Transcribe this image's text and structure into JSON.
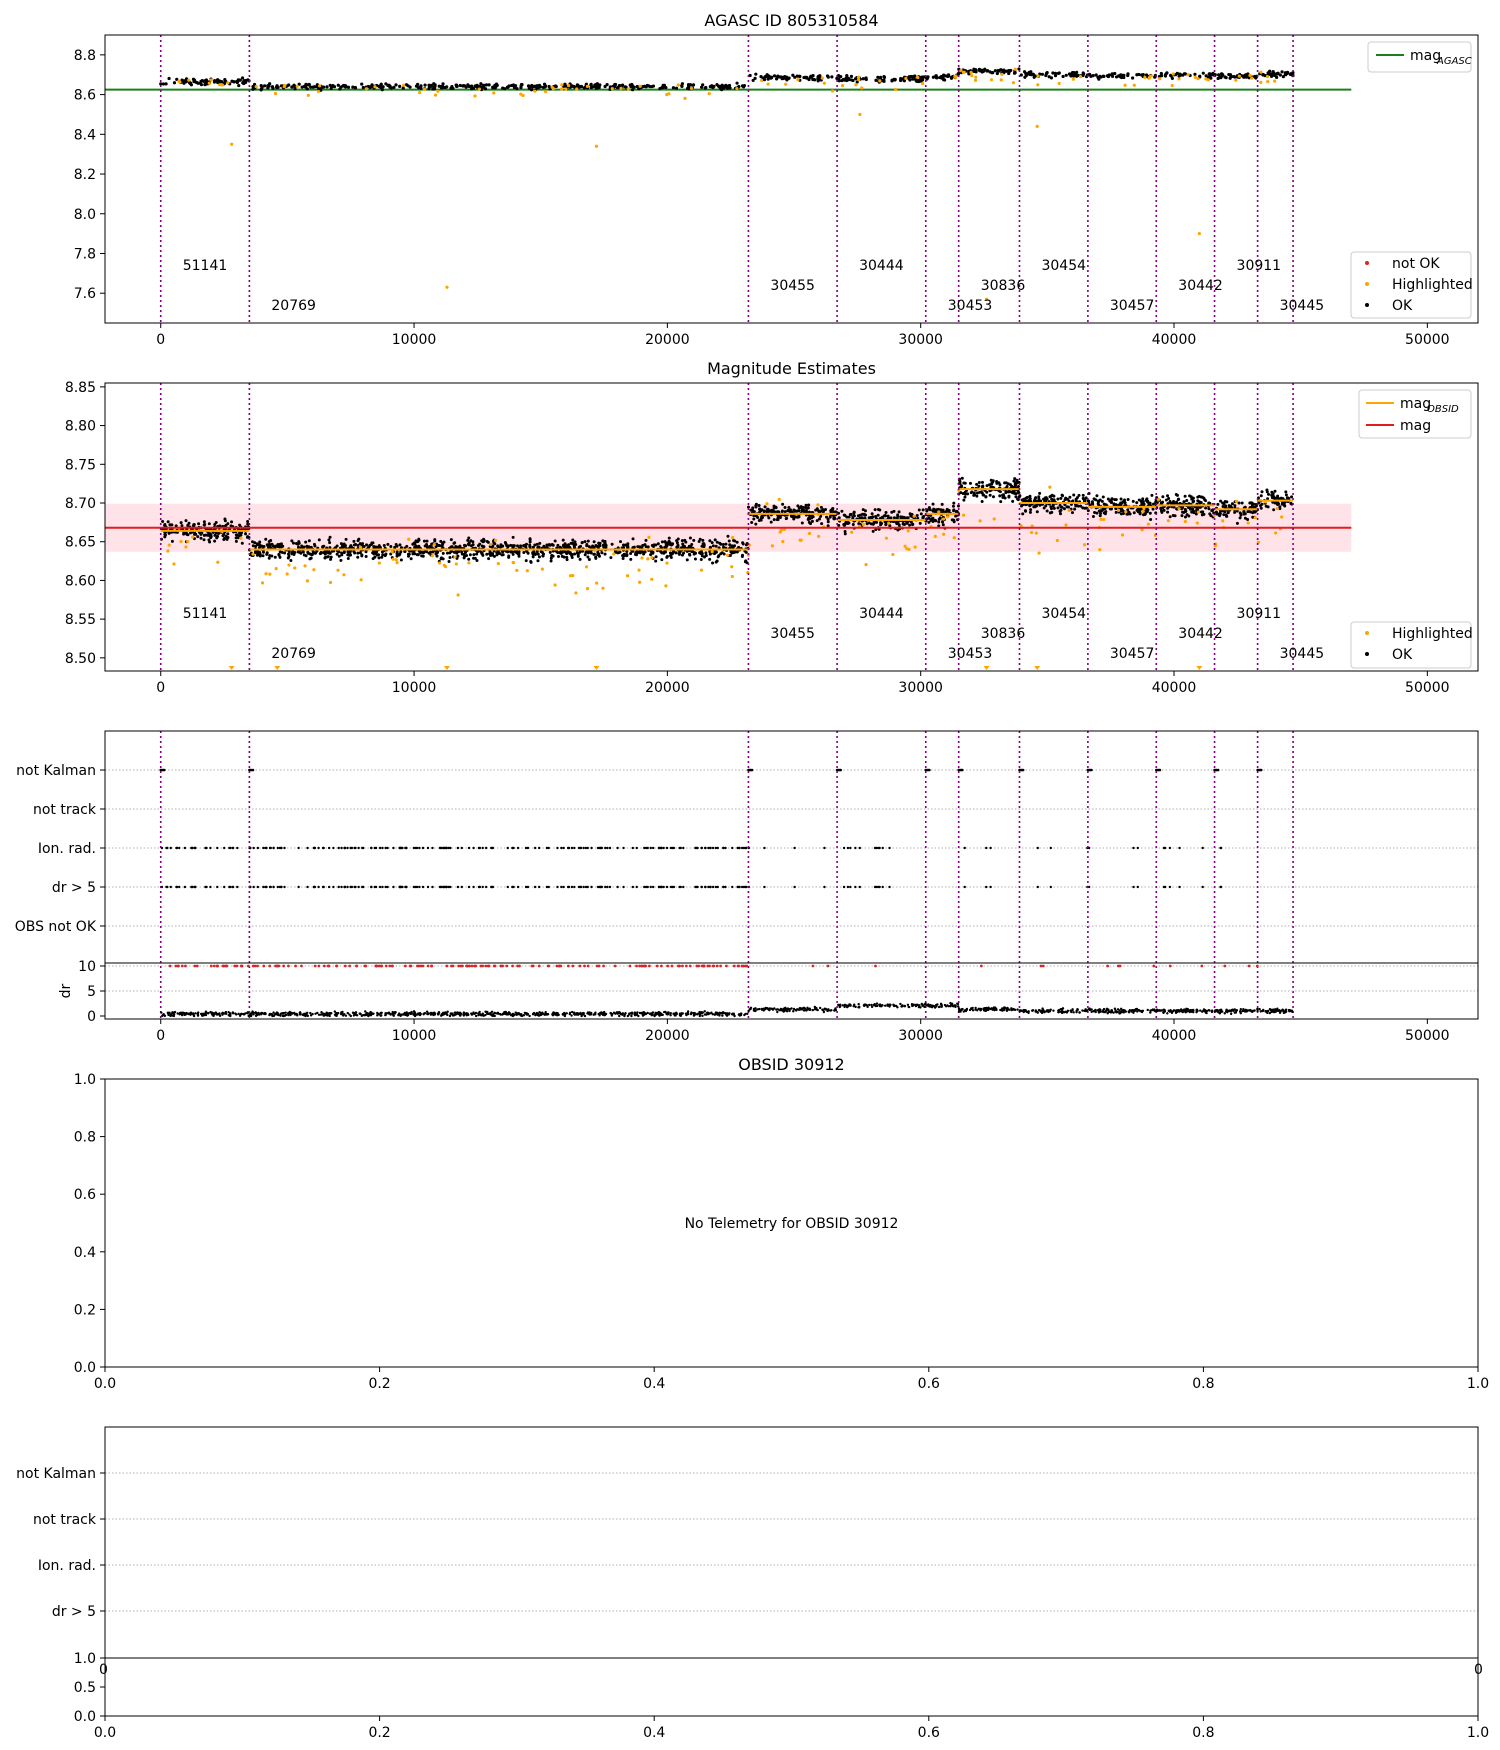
{
  "colors": {
    "ok": "#000000",
    "not_ok": "#d62728",
    "highlighted": "#ffa500",
    "mag_agasc": "#1a7f1a",
    "mag": "#e41a1c",
    "mag_obsid": "#ffa500",
    "obsid_line": "#800080",
    "band": "#ffc0cb",
    "grid": "#b0b0b0"
  },
  "obsids": [
    {
      "id": "51141",
      "start": 0,
      "end": 3500,
      "mean": 8.664
    },
    {
      "id": "20769",
      "start": 3500,
      "end": 23200,
      "mean": 8.64
    },
    {
      "id": "30455",
      "start": 23200,
      "end": 26700,
      "mean": 8.686
    },
    {
      "id": "30444",
      "start": 26700,
      "end": 30200,
      "mean": 8.678
    },
    {
      "id": "30453",
      "start": 30200,
      "end": 31500,
      "mean": 8.686
    },
    {
      "id": "30836",
      "start": 31500,
      "end": 33900,
      "mean": 8.718
    },
    {
      "id": "30454",
      "start": 33900,
      "end": 36600,
      "mean": 8.7
    },
    {
      "id": "30457",
      "start": 36600,
      "end": 39300,
      "mean": 8.695
    },
    {
      "id": "30442",
      "start": 39300,
      "end": 41600,
      "mean": 8.697
    },
    {
      "id": "30911",
      "start": 41600,
      "end": 43300,
      "mean": 8.692
    },
    {
      "id": "30445",
      "start": 43300,
      "end": 44700,
      "mean": 8.703
    }
  ],
  "chart_data": [
    {
      "type": "scatter",
      "title": "AGASC ID 805310584",
      "xlabel": "",
      "ylabel": "",
      "xlim": [
        -2200,
        52000
      ],
      "ylim": [
        7.45,
        8.9
      ],
      "xticks": [
        0,
        10000,
        20000,
        30000,
        40000,
        50000
      ],
      "yticks": [
        7.6,
        7.8,
        8.0,
        8.2,
        8.4,
        8.6,
        8.8
      ],
      "hlines": [
        {
          "name": "mag_AGASC",
          "value": 8.625,
          "x": [
            -2200,
            47000
          ]
        }
      ],
      "highlighted_outliers": [
        {
          "x": 2800,
          "y": 8.35
        },
        {
          "x": 17200,
          "y": 8.34
        },
        {
          "x": 11300,
          "y": 7.63
        },
        {
          "x": 32600,
          "y": 7.57
        },
        {
          "x": 41000,
          "y": 7.9
        },
        {
          "x": 34600,
          "y": 8.44
        },
        {
          "x": 27600,
          "y": 8.5
        }
      ],
      "legends": [
        {
          "placement": "upper right",
          "entries": [
            {
              "label": "mag",
              "sub": "AGASC",
              "marker": "line",
              "color": "mag_agasc"
            }
          ]
        },
        {
          "placement": "lower right",
          "entries": [
            {
              "label": "not OK",
              "marker": "dot",
              "color": "not_ok"
            },
            {
              "label": "Highlighted",
              "marker": "dot",
              "color": "highlighted"
            },
            {
              "label": "OK",
              "marker": "dot",
              "color": "ok"
            }
          ]
        }
      ]
    },
    {
      "type": "scatter",
      "title": "Magnitude Estimates",
      "xlabel": "",
      "ylabel": "",
      "xlim": [
        -2200,
        52000
      ],
      "ylim": [
        8.483,
        8.855
      ],
      "xticks": [
        0,
        10000,
        20000,
        30000,
        40000,
        50000
      ],
      "yticks": [
        8.5,
        8.55,
        8.6,
        8.65,
        8.7,
        8.75,
        8.8,
        8.85
      ],
      "hlines": [
        {
          "name": "mag",
          "value": 8.668,
          "band": [
            8.637,
            8.699
          ],
          "x": [
            -2200,
            47000
          ]
        }
      ],
      "legends": [
        {
          "placement": "upper right",
          "entries": [
            {
              "label": "mag",
              "sub": "OBSID",
              "marker": "line",
              "color": "mag_obsid"
            },
            {
              "label": "mag",
              "marker": "line",
              "color": "mag"
            }
          ]
        },
        {
          "placement": "lower right",
          "entries": [
            {
              "label": "Highlighted",
              "marker": "dot",
              "color": "highlighted"
            },
            {
              "label": "OK",
              "marker": "dot",
              "color": "ok"
            }
          ]
        }
      ]
    },
    {
      "type": "scatter",
      "title": "",
      "xlim": [
        -2200,
        52000
      ],
      "categories": [
        "not Kalman",
        "not track",
        "Ion. rad.",
        "dr > 5",
        "OBS not OK"
      ],
      "dr_yticks": [
        0,
        5,
        10
      ],
      "dr_ylabel": "dr",
      "xticks": [
        0,
        10000,
        20000,
        30000,
        40000,
        50000
      ]
    },
    {
      "type": "scatter",
      "title": "OBSID 30912",
      "message": "No Telemetry for OBSID 30912",
      "xlim": [
        0,
        1
      ],
      "ylim": [
        0,
        1
      ],
      "xticks": [
        "0.0",
        "0.2",
        "0.4",
        "0.6",
        "0.8",
        "1.0"
      ],
      "yticks": [
        "0.0",
        "0.2",
        "0.4",
        "0.6",
        "0.8",
        "1.0"
      ]
    },
    {
      "type": "scatter",
      "title": "",
      "categories": [
        "not Kalman",
        "not track",
        "Ion. rad.",
        "dr > 5"
      ],
      "dr_yticks": [
        "0.0",
        "0.5",
        "1.0"
      ],
      "xticks": [
        "0.0",
        "0.2",
        "0.4",
        "0.6",
        "0.8",
        "1.0"
      ],
      "clipped_xticks": [
        "0",
        "0"
      ]
    }
  ]
}
